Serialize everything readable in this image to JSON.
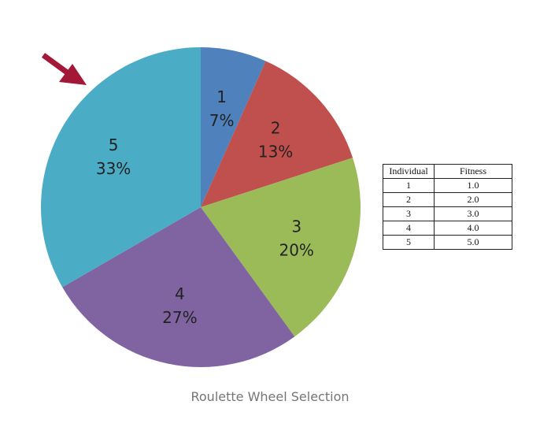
{
  "chart_data": {
    "type": "pie",
    "slices": [
      {
        "label": "1",
        "percent_text": "7%",
        "value": 1.0,
        "color": "#4F81BD"
      },
      {
        "label": "2",
        "percent_text": "13%",
        "value": 2.0,
        "color": "#C0504D"
      },
      {
        "label": "3",
        "percent_text": "20%",
        "value": 3.0,
        "color": "#9BBB59"
      },
      {
        "label": "4",
        "percent_text": "27%",
        "value": 4.0,
        "color": "#8064A2"
      },
      {
        "label": "5",
        "percent_text": "33%",
        "value": 5.0,
        "color": "#4BACC6"
      }
    ],
    "start_angle_deg": 0,
    "direction": "clockwise",
    "pointer_color": "#A31836"
  },
  "table": {
    "headers": [
      "Individual",
      "Fitness"
    ],
    "rows": [
      [
        "1",
        "1.0"
      ],
      [
        "2",
        "2.0"
      ],
      [
        "3",
        "3.0"
      ],
      [
        "4",
        "4.0"
      ],
      [
        "5",
        "5.0"
      ]
    ]
  },
  "caption": "Roulette Wheel Selection"
}
